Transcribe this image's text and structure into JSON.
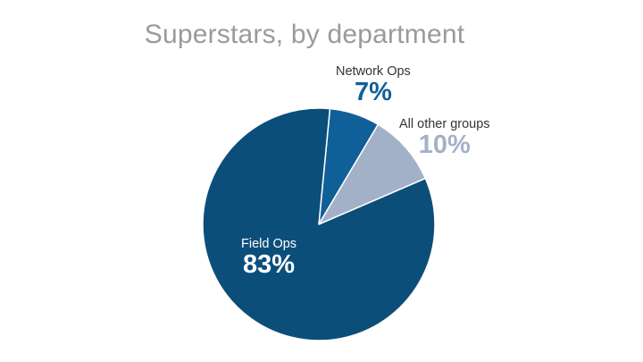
{
  "chart_data": {
    "type": "pie",
    "title": "Superstars, by department",
    "slices": [
      {
        "label": "Field Ops",
        "value": 83,
        "display": "83%",
        "color": "#0c4e7a",
        "label_color": "#ffffff"
      },
      {
        "label": "Network Ops",
        "value": 7,
        "display": "7%",
        "color": "#0f5f98",
        "label_color": "#125f98"
      },
      {
        "label": "All other groups",
        "value": 10,
        "display": "10%",
        "color": "#a3b1c8",
        "label_color": "#a3b1c8"
      }
    ],
    "legend": "none"
  }
}
